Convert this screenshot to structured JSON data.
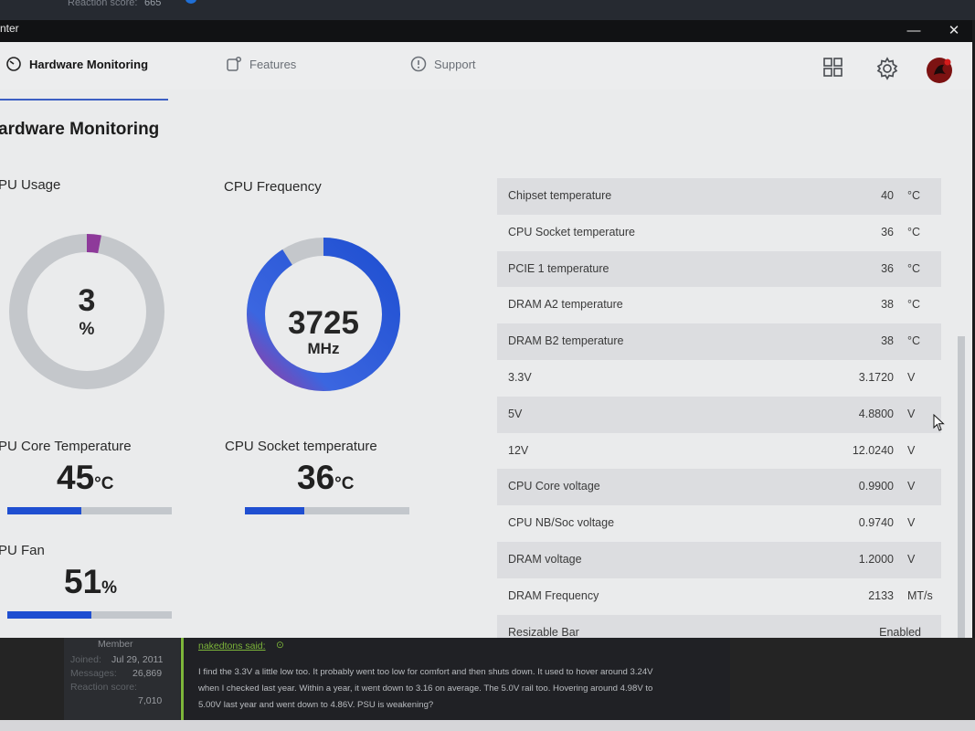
{
  "forum_top": {
    "reaction_label": "Reaction score:",
    "reaction_value": "665"
  },
  "window": {
    "title": "nter",
    "minimize": "—",
    "close": "✕"
  },
  "nav": {
    "tabs": [
      {
        "label": "Hardware Monitoring",
        "icon": "monitor-gauge-icon",
        "active": true
      },
      {
        "label": "Features",
        "icon": "features-icon",
        "active": false
      },
      {
        "label": "Support",
        "icon": "support-icon",
        "active": false
      }
    ],
    "right_icons": [
      "grid-icon",
      "gear-icon",
      "avatar"
    ]
  },
  "page_title": "ardware Monitoring",
  "widgets": {
    "cpu_usage": {
      "label": "PU Usage",
      "value": "3",
      "unit": "%",
      "percent": 3
    },
    "cpu_frequency": {
      "label": "CPU Frequency",
      "value": "3725",
      "unit": "MHz",
      "fill_fraction": 0.91
    },
    "cpu_core_temp": {
      "label": "PU Core Temperature",
      "value": "45",
      "unit": "°C",
      "bar_fraction": 0.45
    },
    "cpu_socket_temp": {
      "label": "CPU Socket temperature",
      "value": "36",
      "unit": "°C",
      "bar_fraction": 0.36
    },
    "cpu_fan": {
      "label": "PU Fan",
      "value": "51",
      "unit": "%",
      "bar_fraction": 0.51
    }
  },
  "sensors": [
    {
      "name": "Chipset temperature",
      "value": "40",
      "unit": "°C"
    },
    {
      "name": "CPU Socket temperature",
      "value": "36",
      "unit": "°C"
    },
    {
      "name": "PCIE 1 temperature",
      "value": "36",
      "unit": "°C"
    },
    {
      "name": "DRAM A2 temperature",
      "value": "38",
      "unit": "°C"
    },
    {
      "name": "DRAM B2 temperature",
      "value": "38",
      "unit": "°C"
    },
    {
      "name": "3.3V",
      "value": "3.1720",
      "unit": "V"
    },
    {
      "name": "5V",
      "value": "4.8800",
      "unit": "V"
    },
    {
      "name": "12V",
      "value": "12.0240",
      "unit": "V"
    },
    {
      "name": "CPU Core voltage",
      "value": "0.9900",
      "unit": "V"
    },
    {
      "name": "CPU NB/Soc voltage",
      "value": "0.9740",
      "unit": "V"
    },
    {
      "name": "DRAM voltage",
      "value": "1.2000",
      "unit": "V"
    },
    {
      "name": "DRAM Frequency",
      "value": "2133",
      "unit": "MT/s"
    },
    {
      "name": "Resizable Bar",
      "value": "Enabled",
      "unit": ""
    }
  ],
  "colors": {
    "accent_blue": "#1f4fd1",
    "gauge_purple": "#8e3a9a",
    "track_gray": "#c4c7cb",
    "post_green": "#7db63a"
  },
  "forum_bottom": {
    "member_role": "Member",
    "joined_label": "Joined:",
    "joined_value": "Jul 29, 2011",
    "messages_label": "Messages:",
    "messages_value": "26,869",
    "reaction_label": "Reaction score:",
    "reaction_value": "7,010",
    "quote_author": "nakedtons said:",
    "quote_lines": [
      "I find the 3.3V a little low too. It probably went too low for comfort and then shuts down. It used to hover around 3.24V",
      "when I checked last year. Within a year, it went down to 3.16 on average. The 5.0V rail too. Hovering around 4.98V to",
      "5.00V last year and went down to 4.86V. PSU is weakening?"
    ]
  }
}
